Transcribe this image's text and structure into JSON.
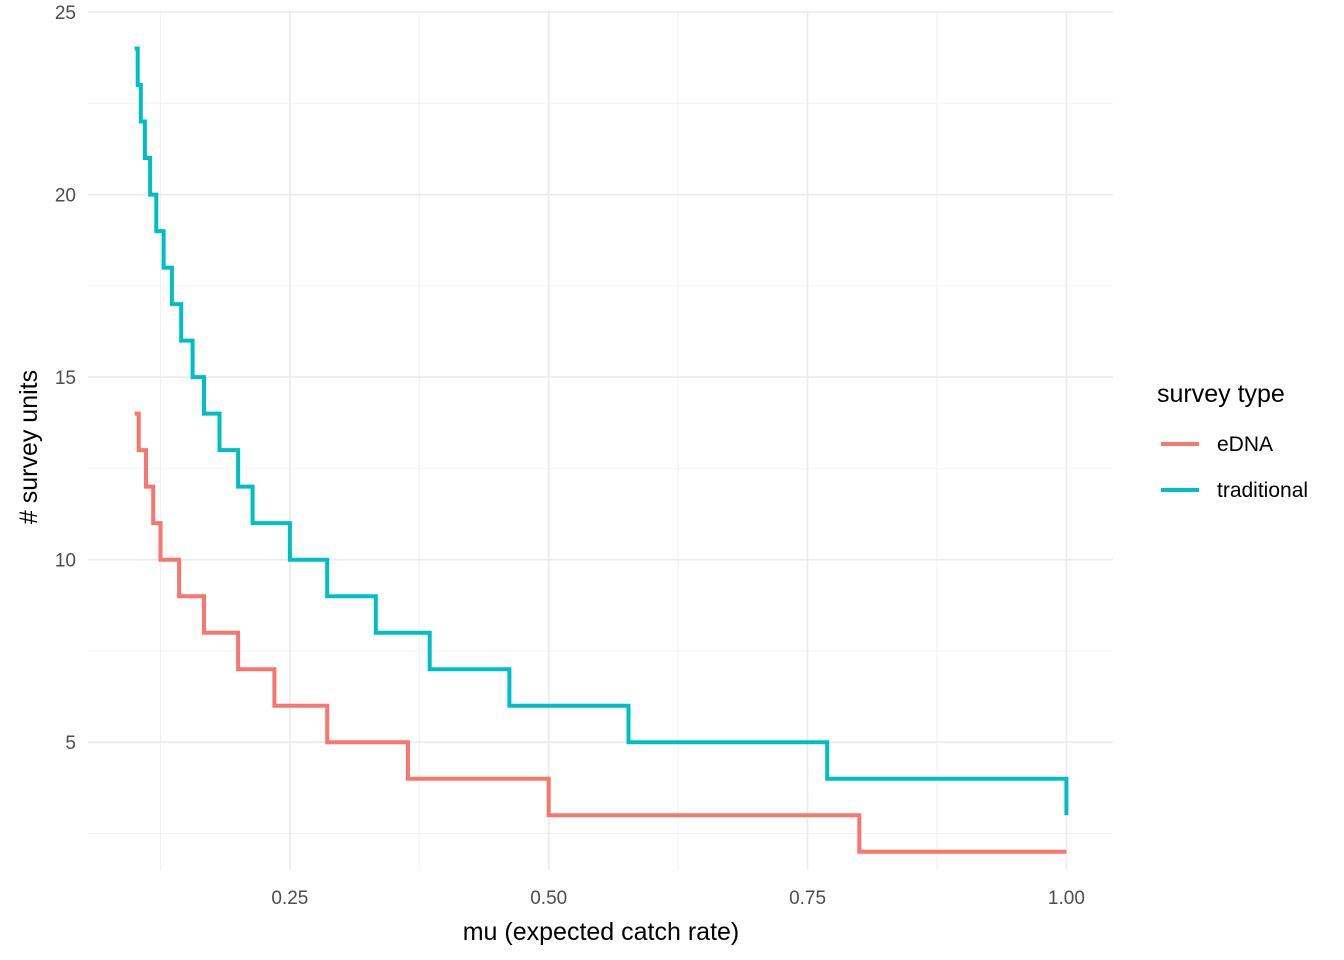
{
  "chart_data": {
    "type": "line",
    "line_style": "step",
    "xlabel": "mu (expected catch rate)",
    "ylabel": "# survey units",
    "xlim": [
      0.055,
      1.045
    ],
    "ylim": [
      1.5,
      25.0
    ],
    "x_ticks": [
      0.25,
      0.5,
      0.75,
      1.0
    ],
    "x_tick_labels": [
      "0.25",
      "0.50",
      "0.75",
      "1.00"
    ],
    "y_ticks": [
      5,
      10,
      15,
      20,
      25
    ],
    "y_tick_labels": [
      "5",
      "10",
      "15",
      "20",
      "25"
    ],
    "grid": true,
    "legend": {
      "title": "survey type",
      "placement": "right"
    },
    "series": [
      {
        "name": "eDNA",
        "color": "#F8766D",
        "x": [
          0.1,
          0.104,
          0.111,
          0.118,
          0.125,
          0.143,
          0.167,
          0.2,
          0.235,
          0.286,
          0.364,
          0.5,
          0.8,
          1.0
        ],
        "y": [
          14,
          13,
          12,
          11,
          10,
          9,
          8,
          7,
          6,
          5,
          4,
          3,
          2,
          2
        ]
      },
      {
        "name": "traditional",
        "color": "#00BFC4",
        "x": [
          0.1,
          0.103,
          0.106,
          0.11,
          0.115,
          0.121,
          0.128,
          0.136,
          0.145,
          0.156,
          0.167,
          0.182,
          0.2,
          0.214,
          0.25,
          0.286,
          0.333,
          0.385,
          0.462,
          0.577,
          0.769,
          1.0
        ],
        "y": [
          24,
          23,
          22,
          21,
          20,
          19,
          18,
          17,
          16,
          15,
          14,
          13,
          12,
          11,
          10,
          9,
          8,
          7,
          6,
          5,
          4,
          3
        ]
      }
    ]
  }
}
